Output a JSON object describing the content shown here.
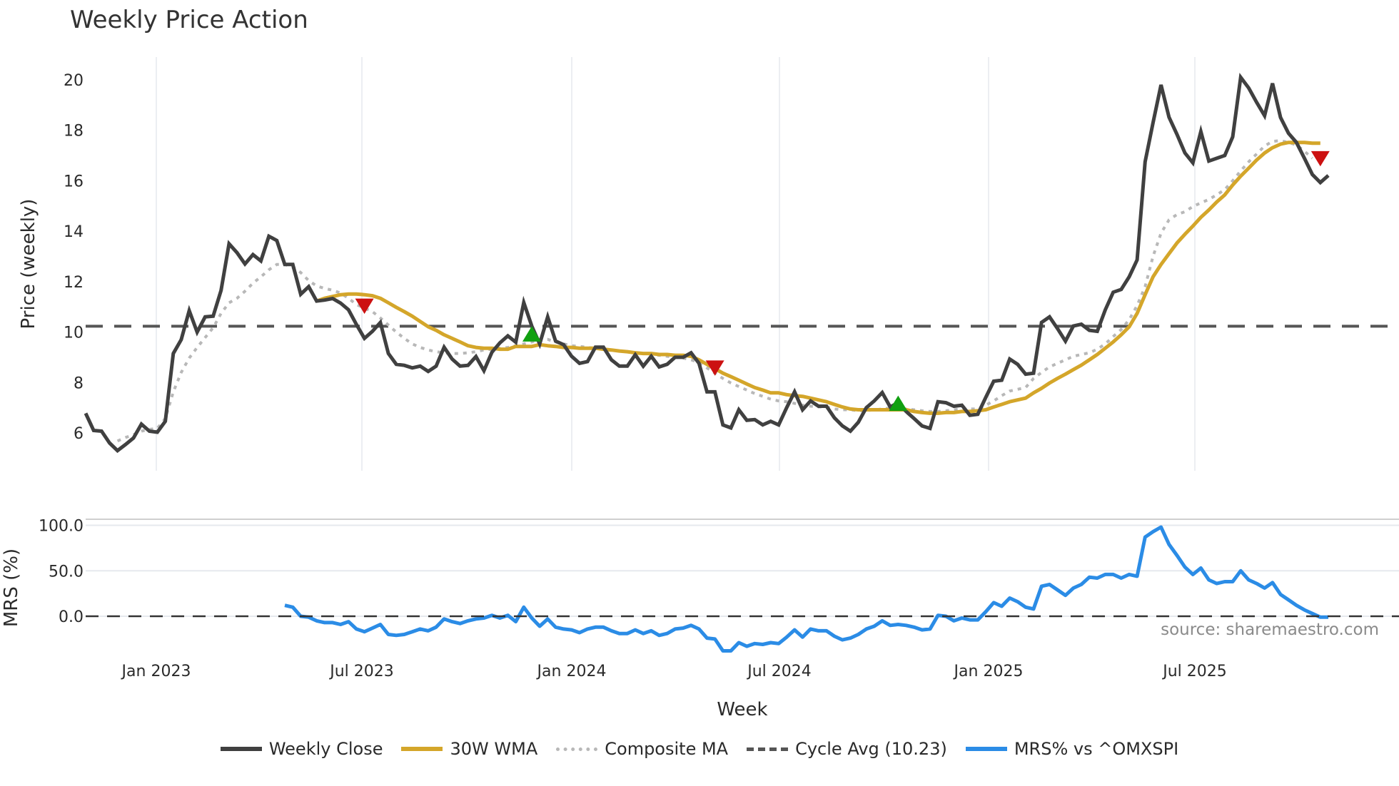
{
  "title": "Weekly Price Action",
  "colors": {
    "weekly_close": "#404040",
    "wma": "#d4a62a",
    "composite": "#b8b8b8",
    "cycle_avg": "#555555",
    "mrs": "#2b8ce6",
    "sell": "#cc1111",
    "buy": "#11a011",
    "grid": "#e6e9ee"
  },
  "legend": [
    {
      "key": "weekly_close",
      "label": "Weekly Close",
      "style": "solid"
    },
    {
      "key": "wma",
      "label": "30W WMA",
      "style": "solid"
    },
    {
      "key": "composite",
      "label": "Composite MA",
      "style": "dotted"
    },
    {
      "key": "cycle_avg",
      "label": "Cycle Avg (10.23)",
      "style": "dashed"
    },
    {
      "key": "mrs",
      "label": "MRS% vs ^OMXSPI",
      "style": "solid"
    }
  ],
  "source_text": "source: sharemaestro.com",
  "chart_data": [
    {
      "type": "line",
      "title": "Weekly Price Action",
      "xlabel": "Week",
      "ylabel": "Price (weekly)",
      "ylim": [
        4.8,
        20.9
      ],
      "yticks": [
        6,
        8,
        10,
        12,
        14,
        16,
        18,
        20
      ],
      "xticks": [
        "Jan 2023",
        "Jul 2023",
        "Jan 2024",
        "Jul 2024",
        "Jan 2025",
        "Jul 2025"
      ],
      "x_start": "2022-11-04",
      "x_step": "1 week",
      "grid": "vertical",
      "series": [
        {
          "name": "Weekly Close",
          "key": "weekly_close",
          "start_index": 0,
          "values": [
            6.78,
            6.1,
            6.07,
            5.6,
            5.3,
            5.54,
            5.8,
            6.35,
            6.07,
            6.03,
            6.46,
            9.15,
            9.7,
            10.85,
            10.0,
            10.6,
            10.63,
            11.65,
            13.5,
            13.15,
            12.7,
            13.07,
            12.82,
            13.8,
            13.63,
            12.68,
            12.68,
            11.5,
            11.8,
            11.23,
            11.27,
            11.33,
            11.15,
            10.88,
            10.3,
            9.75,
            10.03,
            10.38,
            9.15,
            8.72,
            8.68,
            8.58,
            8.65,
            8.44,
            8.65,
            9.4,
            8.93,
            8.65,
            8.68,
            9.03,
            8.47,
            9.2,
            9.57,
            9.85,
            9.6,
            11.17,
            10.24,
            9.53,
            10.6,
            9.64,
            9.5,
            9.04,
            8.76,
            8.83,
            9.4,
            9.4,
            8.9,
            8.65,
            8.65,
            9.1,
            8.65,
            9.04,
            8.62,
            8.72,
            9.0,
            9.0,
            9.18,
            8.76,
            7.63,
            7.63,
            6.32,
            6.2,
            6.92,
            6.5,
            6.53,
            6.32,
            6.46,
            6.32,
            7.0,
            7.63,
            6.92,
            7.27,
            7.06,
            7.06,
            6.6,
            6.28,
            6.07,
            6.42,
            7.0,
            7.27,
            7.6,
            7.03,
            7.2,
            6.85,
            6.57,
            6.28,
            6.18,
            7.24,
            7.2,
            7.06,
            7.1,
            6.7,
            6.74,
            7.41,
            8.05,
            8.09,
            8.93,
            8.72,
            8.33,
            8.37,
            10.38,
            10.6,
            10.14,
            9.64,
            10.24,
            10.31,
            10.07,
            10.03,
            10.88,
            11.58,
            11.69,
            12.19,
            12.86,
            16.75,
            18.3,
            19.8,
            18.52,
            17.84,
            17.1,
            16.71,
            17.95,
            16.78,
            16.89,
            17.0,
            17.74,
            20.1,
            19.68,
            19.11,
            18.58,
            19.86,
            18.51,
            17.88,
            17.52,
            16.89,
            16.25,
            15.93,
            16.21
          ]
        },
        {
          "name": "30W WMA",
          "key": "wma",
          "start_index": 29,
          "values": [
            11.23,
            11.34,
            11.41,
            11.48,
            11.51,
            11.51,
            11.48,
            11.44,
            11.34,
            11.16,
            10.98,
            10.81,
            10.63,
            10.42,
            10.21,
            10.07,
            9.89,
            9.75,
            9.61,
            9.46,
            9.39,
            9.36,
            9.36,
            9.32,
            9.32,
            9.43,
            9.43,
            9.43,
            9.5,
            9.46,
            9.43,
            9.39,
            9.39,
            9.36,
            9.36,
            9.36,
            9.32,
            9.29,
            9.25,
            9.22,
            9.18,
            9.15,
            9.15,
            9.11,
            9.11,
            9.08,
            9.08,
            9.04,
            8.9,
            8.72,
            8.55,
            8.37,
            8.23,
            8.09,
            7.94,
            7.8,
            7.7,
            7.59,
            7.59,
            7.52,
            7.48,
            7.45,
            7.38,
            7.31,
            7.24,
            7.13,
            7.03,
            6.95,
            6.92,
            6.92,
            6.92,
            6.92,
            6.92,
            6.92,
            6.92,
            6.85,
            6.81,
            6.78,
            6.78,
            6.81,
            6.81,
            6.85,
            6.85,
            6.88,
            6.92,
            7.03,
            7.13,
            7.24,
            7.31,
            7.38,
            7.59,
            7.77,
            7.98,
            8.16,
            8.33,
            8.51,
            8.69,
            8.9,
            9.11,
            9.36,
            9.61,
            9.89,
            10.21,
            10.74,
            11.48,
            12.19,
            12.68,
            13.11,
            13.53,
            13.88,
            14.2,
            14.55,
            14.84,
            15.16,
            15.44,
            15.83,
            16.18,
            16.5,
            16.82,
            17.1,
            17.31,
            17.45,
            17.52,
            17.52,
            17.52,
            17.49,
            17.49
          ]
        },
        {
          "name": "Composite MA",
          "key": "composite",
          "start_index": 4,
          "values": [
            5.68,
            5.82,
            5.93,
            6.07,
            6.14,
            6.18,
            6.57,
            7.63,
            8.4,
            8.97,
            9.39,
            9.78,
            10.17,
            10.74,
            11.16,
            11.34,
            11.62,
            11.94,
            12.19,
            12.47,
            12.68,
            12.68,
            12.57,
            12.36,
            12.04,
            11.83,
            11.73,
            11.66,
            11.55,
            11.34,
            11.09,
            10.95,
            10.81,
            10.56,
            10.28,
            10.0,
            9.75,
            9.53,
            9.39,
            9.29,
            9.22,
            9.18,
            9.15,
            9.15,
            9.18,
            9.22,
            9.29,
            9.32,
            9.36,
            9.39,
            9.46,
            9.53,
            9.61,
            9.71,
            9.71,
            9.61,
            9.53,
            9.46,
            9.43,
            9.39,
            9.36,
            9.32,
            9.29,
            9.25,
            9.22,
            9.18,
            9.15,
            9.11,
            9.08,
            9.04,
            9.0,
            8.97,
            8.9,
            8.79,
            8.58,
            8.37,
            8.16,
            7.98,
            7.84,
            7.7,
            7.56,
            7.45,
            7.34,
            7.27,
            7.24,
            7.17,
            7.1,
            7.06,
            7.03,
            7.03,
            6.95,
            6.92,
            6.92,
            6.88,
            6.88,
            6.92,
            6.95,
            6.99,
            6.99,
            6.95,
            6.92,
            6.88,
            6.85,
            6.85,
            6.88,
            6.92,
            6.95,
            6.95,
            6.95,
            7.1,
            7.27,
            7.48,
            7.66,
            7.73,
            7.8,
            8.16,
            8.4,
            8.62,
            8.76,
            8.9,
            9.04,
            9.11,
            9.18,
            9.32,
            9.53,
            9.82,
            10.1,
            10.49,
            11.05,
            11.8,
            13.0,
            13.92,
            14.45,
            14.66,
            14.77,
            14.98,
            15.12,
            15.26,
            15.44,
            15.65,
            16.0,
            16.39,
            16.75,
            17.06,
            17.38,
            17.56,
            17.59,
            17.52,
            17.42,
            17.17,
            16.89
          ]
        },
        {
          "name": "Cycle Avg (10.23)",
          "key": "cycle_avg",
          "type": "hline",
          "value": 10.23
        }
      ],
      "markers": [
        {
          "type": "sell",
          "shape": "triangle-down",
          "index": 35,
          "value": 11.05
        },
        {
          "type": "buy",
          "shape": "triangle-up",
          "index": 56,
          "value": 9.9
        },
        {
          "type": "sell",
          "shape": "triangle-down",
          "index": 79,
          "value": 8.6
        },
        {
          "type": "buy",
          "shape": "triangle-up",
          "index": 102,
          "value": 7.15
        },
        {
          "type": "sell",
          "shape": "triangle-down",
          "index": 155,
          "value": 16.9
        }
      ]
    },
    {
      "type": "line",
      "ylabel": "MRS (%)",
      "ylim": [
        -55,
        110
      ],
      "yticks": [
        "100.0",
        "50.0",
        "0.0"
      ],
      "xlabel": "Week",
      "series": [
        {
          "name": "MRS% vs ^OMXSPI",
          "key": "mrs",
          "start_index": 25,
          "values": [
            12,
            10,
            0,
            -1,
            -5,
            -7,
            -7,
            -9,
            -6,
            -14,
            -17,
            -13,
            -9,
            -20,
            -21,
            -20,
            -17,
            -14,
            -16,
            -12,
            -3,
            -6,
            -8,
            -5,
            -3,
            -2,
            1,
            -2,
            1,
            -6,
            10,
            -2,
            -11,
            -3,
            -12,
            -14,
            -15,
            -18,
            -14,
            -12,
            -12,
            -16,
            -19,
            -19,
            -15,
            -19,
            -16,
            -21,
            -19,
            -14,
            -13,
            -10,
            -14,
            -24,
            -25,
            -38,
            -38,
            -29,
            -33,
            -30,
            -31,
            -29,
            -30,
            -23,
            -15,
            -23,
            -14,
            -16,
            -16,
            -22,
            -26,
            -24,
            -20,
            -14,
            -11,
            -5,
            -10,
            -9,
            -10,
            -12,
            -15,
            -14,
            1,
            0,
            -5,
            -2,
            -4,
            -4,
            5,
            15,
            11,
            20,
            16,
            10,
            8,
            33,
            35,
            29,
            23,
            31,
            35,
            43,
            42,
            46,
            46,
            42,
            46,
            44,
            87,
            93,
            98,
            79,
            67,
            54,
            46,
            53,
            40,
            36,
            38,
            38,
            50,
            40,
            36,
            31,
            37,
            24,
            18,
            12,
            7,
            3,
            -1,
            -1
          ]
        },
        {
          "name": "Zero line",
          "key": "zero",
          "type": "hline",
          "value": 0
        }
      ]
    }
  ]
}
